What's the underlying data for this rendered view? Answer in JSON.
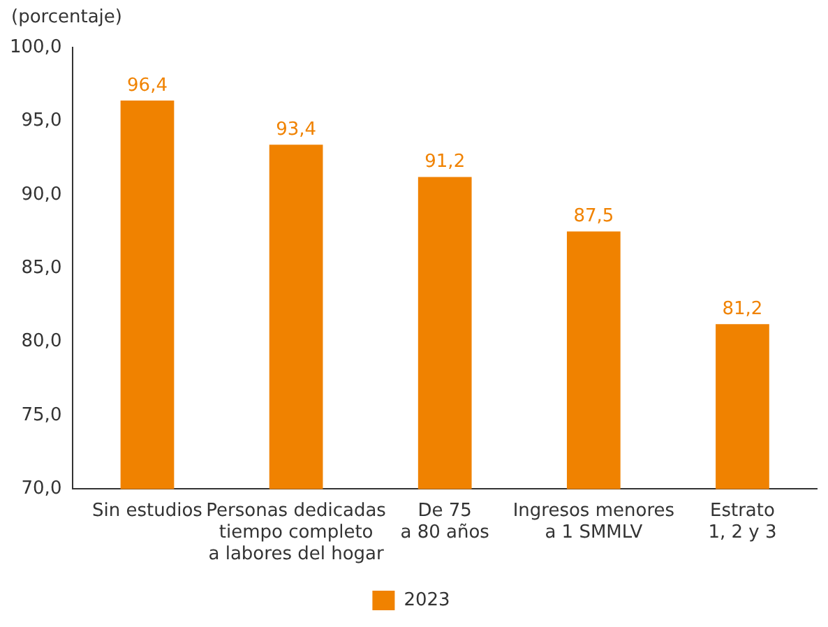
{
  "chart_data": {
    "type": "bar",
    "ylabel": "(porcentaje)",
    "categories": [
      "Sin estudios",
      "Personas dedicadas\ntiempo completo\na labores del hogar",
      "De 75\na 80 años",
      "Ingresos menores\na 1 SMMLV",
      "Estrato\n1, 2 y 3"
    ],
    "series": [
      {
        "name": "2023",
        "color": "#f08200",
        "values": [
          96.4,
          93.4,
          91.2,
          87.5,
          81.2
        ],
        "value_labels": [
          "96,4",
          "93,4",
          "91,2",
          "87,5",
          "81,2"
        ]
      }
    ],
    "ylim": [
      70,
      100
    ],
    "yticks": [
      {
        "value": 70,
        "label": "70,0"
      },
      {
        "value": 75,
        "label": "75,0"
      },
      {
        "value": 80,
        "label": "80,0"
      },
      {
        "value": 85,
        "label": "85,0"
      },
      {
        "value": 90,
        "label": "90,0"
      },
      {
        "value": 95,
        "label": "95,0"
      },
      {
        "value": 100,
        "label": "100,0"
      }
    ],
    "grid": false,
    "legend": "bottom"
  }
}
